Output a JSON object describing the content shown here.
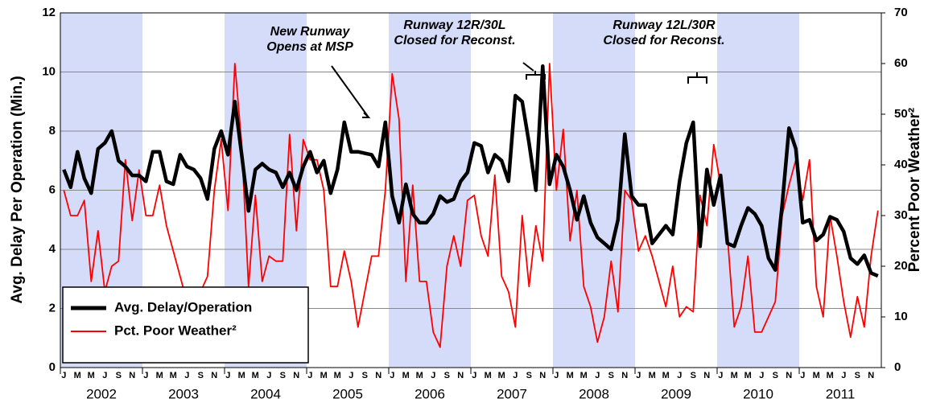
{
  "chart_data": {
    "type": "line",
    "y_label": "Avg. Delay Per Operation (Min.)",
    "y2_label": "Percent Poor Weather²",
    "categories": [
      "J",
      null,
      "M",
      null,
      "M",
      null,
      "J",
      null,
      "S",
      null,
      "N",
      null,
      "J",
      null,
      "M",
      null,
      "M",
      null,
      "J",
      null,
      "S",
      null,
      "N",
      null,
      "J",
      null,
      "M",
      null,
      "M",
      null,
      "J",
      null,
      "S",
      null,
      "N",
      null,
      "J",
      null,
      "M",
      null,
      "M",
      null,
      "J",
      null,
      "S",
      null,
      "N",
      null,
      "J",
      null,
      "M",
      null,
      "M",
      null,
      "J",
      null,
      "S",
      null,
      "N",
      null,
      "J",
      null,
      "M",
      null,
      "M",
      null,
      "J",
      null,
      "S",
      null,
      "N",
      null,
      "J",
      null,
      "M",
      null,
      "M",
      null,
      "J",
      null,
      "S",
      null,
      "N",
      null,
      "J",
      null,
      "M",
      null,
      "M",
      null,
      "J",
      null,
      "S",
      null,
      "N",
      null,
      "J",
      null,
      "M",
      null,
      "M",
      null,
      "J",
      null,
      "S",
      null,
      "N",
      null,
      "J",
      null,
      "M",
      null,
      "M",
      null,
      "J",
      null,
      "S",
      null,
      "N",
      null
    ],
    "years": [
      "2002",
      "2003",
      "2004",
      "2005",
      "2006",
      "2007",
      "2008",
      "2009",
      "2010",
      "2011"
    ],
    "ylim": [
      0,
      12
    ],
    "yticks": [
      0,
      2,
      4,
      6,
      8,
      10,
      12
    ],
    "y2lim": [
      0,
      70
    ],
    "y2ticks": [
      0,
      10,
      20,
      30,
      40,
      50,
      60,
      70
    ],
    "grid": true,
    "series": [
      {
        "name": "Avg. Delay/Operation",
        "color": "#000000",
        "values": [
          6.7,
          6.1,
          7.3,
          6.4,
          5.9,
          7.4,
          7.6,
          8.0,
          7.0,
          6.8,
          6.5,
          6.5,
          6.3,
          7.3,
          7.3,
          6.3,
          6.2,
          7.2,
          6.8,
          6.7,
          6.4,
          5.7,
          7.4,
          8.0,
          7.2,
          9.0,
          7.2,
          5.3,
          6.7,
          6.9,
          6.7,
          6.6,
          6.1,
          6.6,
          6.0,
          6.8,
          7.3,
          6.6,
          7.0,
          5.9,
          6.7,
          8.3,
          7.3,
          7.3,
          7.25,
          7.2,
          6.8,
          8.3,
          5.8,
          4.9,
          6.2,
          5.2,
          4.9,
          4.9,
          5.2,
          5.8,
          5.6,
          5.7,
          6.3,
          6.6,
          7.6,
          7.5,
          6.6,
          7.2,
          7.0,
          6.3,
          9.2,
          9.0,
          7.6,
          6.0,
          10.2,
          6.2,
          7.2,
          6.8,
          6.0,
          5.0,
          5.8,
          4.9,
          4.4,
          4.2,
          4.0,
          5.0,
          7.9,
          5.8,
          5.5,
          5.5,
          4.2,
          4.5,
          4.8,
          4.5,
          6.3,
          7.6,
          8.3,
          4.1,
          6.7,
          5.5,
          6.5,
          4.2,
          4.1,
          4.8,
          5.4,
          5.2,
          4.8,
          3.7,
          3.3,
          5.5,
          8.1,
          7.4,
          4.9,
          5.0,
          4.3,
          4.5,
          5.1,
          5.0,
          4.6,
          3.7,
          3.5,
          3.8,
          3.2,
          3.1
        ]
      },
      {
        "name": "Pct. Poor Weather²",
        "color": "#ff0000",
        "axis": "y2",
        "values": [
          35,
          30,
          30,
          33,
          17,
          27,
          15,
          20,
          21,
          41,
          29,
          39,
          30,
          30,
          36,
          28,
          23,
          18,
          13,
          15,
          15,
          18,
          35,
          45,
          31,
          60,
          44,
          16,
          34,
          17,
          22,
          21,
          21,
          46,
          27,
          45,
          41,
          41,
          35,
          16,
          16,
          23,
          17,
          8,
          15,
          22,
          22,
          35,
          58,
          49,
          17,
          36,
          17,
          17,
          7,
          4,
          20,
          26,
          20,
          33,
          34,
          26,
          22,
          38,
          18,
          15,
          8,
          30,
          16,
          28,
          21,
          60,
          35,
          47,
          25,
          35,
          16,
          12,
          5,
          10,
          21,
          11,
          35,
          33,
          23,
          26,
          22,
          17,
          12,
          20,
          10,
          12,
          11,
          34,
          28,
          44,
          36,
          26,
          8,
          12,
          22,
          7,
          7,
          10,
          13,
          30,
          36,
          41,
          33,
          41,
          16,
          10,
          30,
          22,
          13,
          6,
          14,
          8,
          22,
          31
        ]
      }
    ],
    "annotations": [
      {
        "lines": [
          "New Runway",
          "Opens at MSP"
        ]
      },
      {
        "lines": [
          "Runway 12R/30L",
          "Closed for Reconst."
        ]
      },
      {
        "lines": [
          "Runway 12L/30R",
          "Closed for Reconst."
        ]
      }
    ]
  }
}
